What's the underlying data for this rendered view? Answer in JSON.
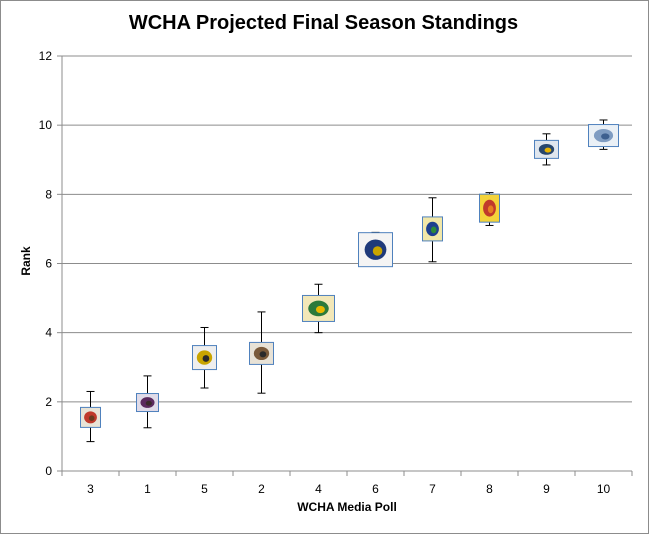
{
  "chart_data": {
    "type": "scatter",
    "title": "WCHA Projected Final Season Standings",
    "xlabel": "WCHA Media Poll",
    "ylabel": "Rank",
    "ylim": [
      0,
      12
    ],
    "yticks": [
      0,
      2,
      4,
      6,
      8,
      10,
      12
    ],
    "grid": true,
    "categories": [
      "3",
      "1",
      "5",
      "2",
      "4",
      "6",
      "7",
      "8",
      "9",
      "10"
    ],
    "values": [
      1.55,
      1.98,
      3.28,
      3.4,
      4.7,
      6.4,
      7.0,
      7.6,
      9.3,
      9.7
    ],
    "error_low": [
      0.85,
      1.25,
      2.4,
      2.25,
      4.0,
      6.0,
      6.05,
      7.1,
      8.85,
      9.3
    ],
    "error_high": [
      2.3,
      2.75,
      4.15,
      4.6,
      5.4,
      6.9,
      7.9,
      8.05,
      9.75,
      10.15
    ],
    "markers": [
      "team-logo-3",
      "team-logo-1",
      "team-logo-5",
      "team-logo-2",
      "team-logo-4",
      "team-logo-6",
      "team-logo-7",
      "team-logo-8",
      "team-logo-9",
      "team-logo-10"
    ],
    "colors": {
      "grid": "#8c8c8c",
      "axis": "#8c8c8c",
      "error_bar": "#000000",
      "logo_border": "#4f81bd"
    }
  }
}
